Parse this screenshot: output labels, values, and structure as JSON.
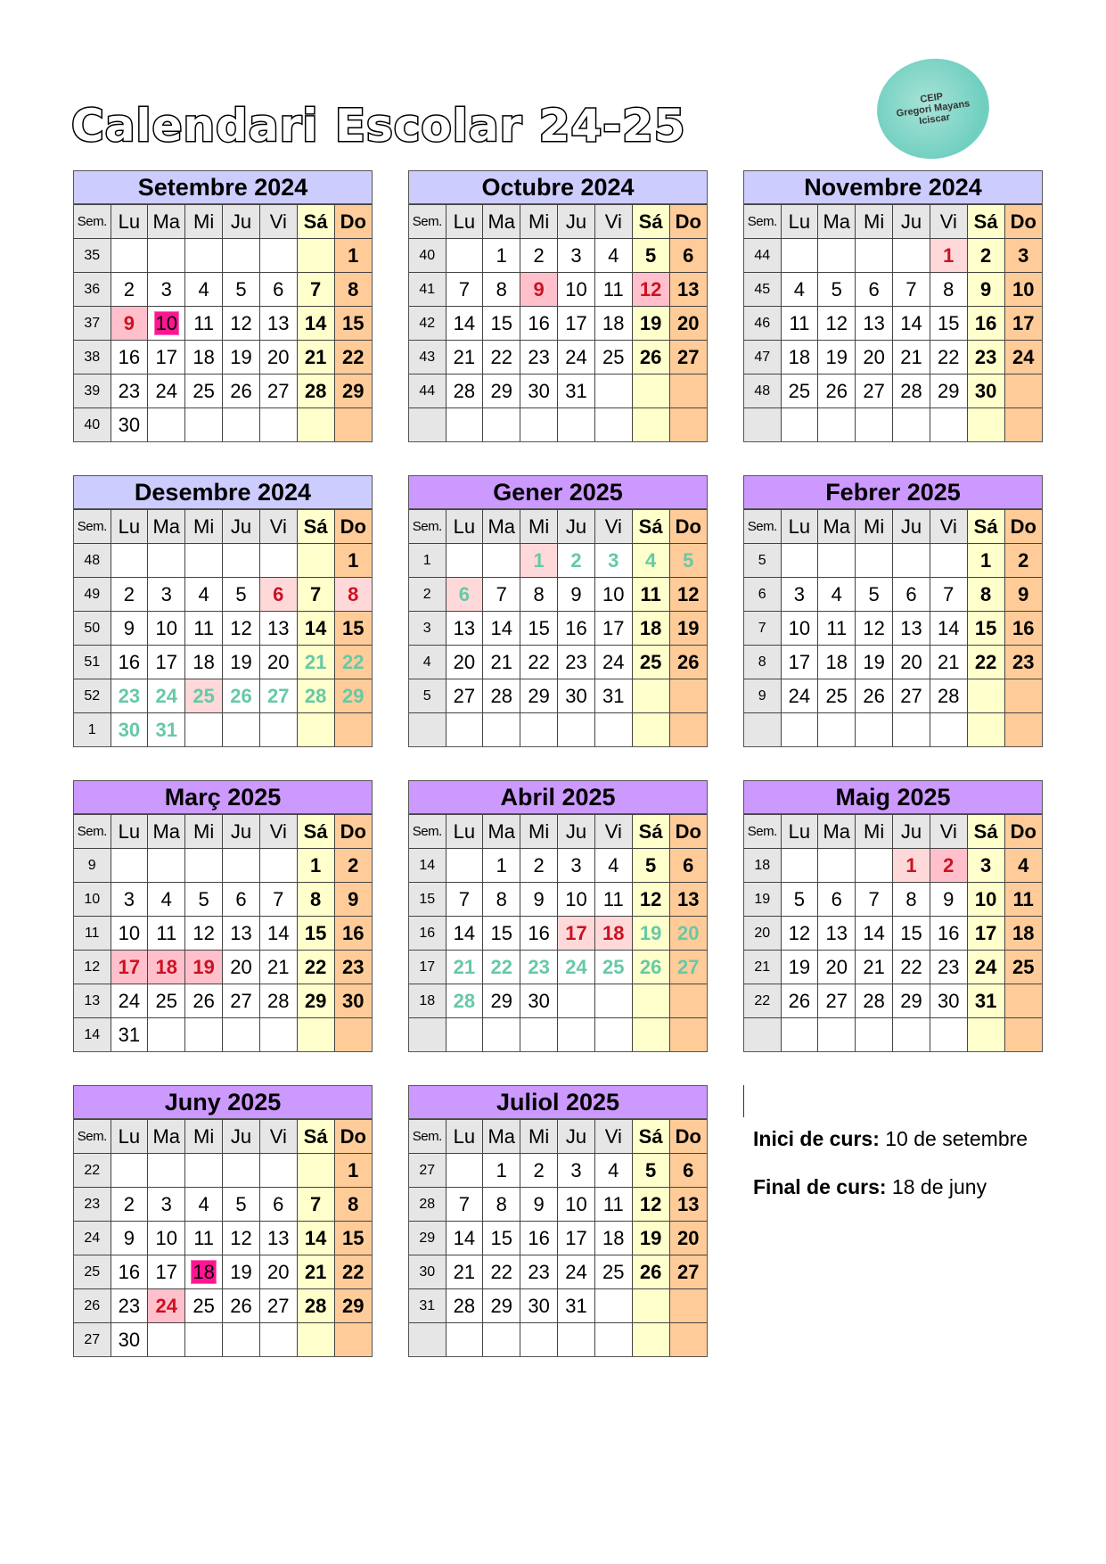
{
  "title": "Calendari Escolar 24-25",
  "logo": {
    "lines": [
      "CEIP",
      "Gregori Mayans",
      "Iciscar"
    ]
  },
  "colors": {
    "autumn_header": "#ccccff",
    "spring_header": "#cc99ff",
    "saturday": "#ffffcc",
    "sunday": "#ffcc99",
    "holiday": "#ffc0cb",
    "holiday_light": "#ffd9d9",
    "course_boundary": "#ff1493",
    "holiday_text": "#cc1122",
    "vacation_text": "#66c9a6"
  },
  "weekday_headers": [
    "Sem.",
    "Lu",
    "Ma",
    "Mi",
    "Ju",
    "Vi",
    "Sá",
    "Do"
  ],
  "months": [
    {
      "name": "Setembre 2024",
      "header": "autumn",
      "weeks": [
        [
          "35",
          "",
          "",
          "",
          "",
          "",
          "",
          "1"
        ],
        [
          "36",
          "2",
          "3",
          "4",
          "5",
          "6",
          "7",
          "8"
        ],
        [
          "37",
          "9",
          "10",
          "11",
          "12",
          "13",
          "14",
          "15"
        ],
        [
          "38",
          "16",
          "17",
          "18",
          "19",
          "20",
          "21",
          "22"
        ],
        [
          "39",
          "23",
          "24",
          "25",
          "26",
          "27",
          "28",
          "29"
        ],
        [
          "40",
          "30",
          "",
          "",
          "",
          "",
          "",
          ""
        ]
      ],
      "marks": {
        "9": "h1",
        "10": "start"
      }
    },
    {
      "name": "Octubre 2024",
      "header": "autumn",
      "weeks": [
        [
          "40",
          "",
          "1",
          "2",
          "3",
          "4",
          "5",
          "6"
        ],
        [
          "41",
          "7",
          "8",
          "9",
          "10",
          "11",
          "12",
          "13"
        ],
        [
          "42",
          "14",
          "15",
          "16",
          "17",
          "18",
          "19",
          "20"
        ],
        [
          "43",
          "21",
          "22",
          "23",
          "24",
          "25",
          "26",
          "27"
        ],
        [
          "44",
          "28",
          "29",
          "30",
          "31",
          "",
          "",
          ""
        ],
        [
          "",
          "",
          "",
          "",
          "",
          "",
          "",
          ""
        ]
      ],
      "marks": {
        "9": "h1",
        "12": "h1"
      }
    },
    {
      "name": "Novembre 2024",
      "header": "autumn",
      "weeks": [
        [
          "44",
          "",
          "",
          "",
          "",
          "1",
          "2",
          "3"
        ],
        [
          "45",
          "4",
          "5",
          "6",
          "7",
          "8",
          "9",
          "10"
        ],
        [
          "46",
          "11",
          "12",
          "13",
          "14",
          "15",
          "16",
          "17"
        ],
        [
          "47",
          "18",
          "19",
          "20",
          "21",
          "22",
          "23",
          "24"
        ],
        [
          "48",
          "25",
          "26",
          "27",
          "28",
          "29",
          "30",
          ""
        ],
        [
          "",
          "",
          "",
          "",
          "",
          "",
          "",
          ""
        ]
      ],
      "marks": {
        "1": "h2"
      }
    },
    {
      "name": "Desembre 2024",
      "header": "autumn",
      "weeks": [
        [
          "48",
          "",
          "",
          "",
          "",
          "",
          "",
          "1"
        ],
        [
          "49",
          "2",
          "3",
          "4",
          "5",
          "6",
          "7",
          "8"
        ],
        [
          "50",
          "9",
          "10",
          "11",
          "12",
          "13",
          "14",
          "15"
        ],
        [
          "51",
          "16",
          "17",
          "18",
          "19",
          "20",
          "21",
          "22"
        ],
        [
          "52",
          "23",
          "24",
          "25",
          "26",
          "27",
          "28",
          "29"
        ],
        [
          "1",
          "30",
          "31",
          "",
          "",
          "",
          "",
          ""
        ]
      ],
      "marks": {
        "6": "h2",
        "8": "h2",
        "21": "vac",
        "22": "vac",
        "23": "vac",
        "24": "vac",
        "25": "vacpink",
        "26": "vac",
        "27": "vac",
        "28": "vac",
        "29": "vac",
        "30": "vac",
        "31": "vac"
      }
    },
    {
      "name": "Gener 2025",
      "header": "spring",
      "weeks": [
        [
          "1",
          "",
          "",
          "1",
          "2",
          "3",
          "4",
          "5"
        ],
        [
          "2",
          "6",
          "7",
          "8",
          "9",
          "10",
          "11",
          "12"
        ],
        [
          "3",
          "13",
          "14",
          "15",
          "16",
          "17",
          "18",
          "19"
        ],
        [
          "4",
          "20",
          "21",
          "22",
          "23",
          "24",
          "25",
          "26"
        ],
        [
          "5",
          "27",
          "28",
          "29",
          "30",
          "31",
          "",
          ""
        ],
        [
          "",
          "",
          "",
          "",
          "",
          "",
          "",
          ""
        ]
      ],
      "marks": {
        "1": "vacpink",
        "2": "vac",
        "3": "vac",
        "4": "vac",
        "5": "vac",
        "6": "vacpink"
      }
    },
    {
      "name": "Febrer 2025",
      "header": "spring",
      "weeks": [
        [
          "5",
          "",
          "",
          "",
          "",
          "",
          "1",
          "2"
        ],
        [
          "6",
          "3",
          "4",
          "5",
          "6",
          "7",
          "8",
          "9"
        ],
        [
          "7",
          "10",
          "11",
          "12",
          "13",
          "14",
          "15",
          "16"
        ],
        [
          "8",
          "17",
          "18",
          "19",
          "20",
          "21",
          "22",
          "23"
        ],
        [
          "9",
          "24",
          "25",
          "26",
          "27",
          "28",
          "",
          ""
        ],
        [
          "",
          "",
          "",
          "",
          "",
          "",
          "",
          ""
        ]
      ],
      "marks": {}
    },
    {
      "name": "Març 2025",
      "header": "spring",
      "weeks": [
        [
          "9",
          "",
          "",
          "",
          "",
          "",
          "1",
          "2"
        ],
        [
          "10",
          "3",
          "4",
          "5",
          "6",
          "7",
          "8",
          "9"
        ],
        [
          "11",
          "10",
          "11",
          "12",
          "13",
          "14",
          "15",
          "16"
        ],
        [
          "12",
          "17",
          "18",
          "19",
          "20",
          "21",
          "22",
          "23"
        ],
        [
          "13",
          "24",
          "25",
          "26",
          "27",
          "28",
          "29",
          "30"
        ],
        [
          "14",
          "31",
          "",
          "",
          "",
          "",
          "",
          ""
        ]
      ],
      "marks": {
        "17": "h1",
        "18": "h1",
        "19": "h1"
      }
    },
    {
      "name": "Abril 2025",
      "header": "spring",
      "weeks": [
        [
          "14",
          "",
          "1",
          "2",
          "3",
          "4",
          "5",
          "6"
        ],
        [
          "15",
          "7",
          "8",
          "9",
          "10",
          "11",
          "12",
          "13"
        ],
        [
          "16",
          "14",
          "15",
          "16",
          "17",
          "18",
          "19",
          "20"
        ],
        [
          "17",
          "21",
          "22",
          "23",
          "24",
          "25",
          "26",
          "27"
        ],
        [
          "18",
          "28",
          "29",
          "30",
          "",
          "",
          "",
          ""
        ],
        [
          "",
          "",
          "",
          "",
          "",
          "",
          "",
          ""
        ]
      ],
      "marks": {
        "17": "h2",
        "18": "h2",
        "19": "vac",
        "20": "vac",
        "21": "vac",
        "22": "vac",
        "23": "vac",
        "24": "vac",
        "25": "vac",
        "26": "vac",
        "27": "vac",
        "28": "vac"
      }
    },
    {
      "name": "Maig 2025",
      "header": "spring",
      "weeks": [
        [
          "18",
          "",
          "",
          "",
          "1",
          "2",
          "3",
          "4"
        ],
        [
          "19",
          "5",
          "6",
          "7",
          "8",
          "9",
          "10",
          "11"
        ],
        [
          "20",
          "12",
          "13",
          "14",
          "15",
          "16",
          "17",
          "18"
        ],
        [
          "21",
          "19",
          "20",
          "21",
          "22",
          "23",
          "24",
          "25"
        ],
        [
          "22",
          "26",
          "27",
          "28",
          "29",
          "30",
          "31",
          ""
        ],
        [
          "",
          "",
          "",
          "",
          "",
          "",
          "",
          ""
        ]
      ],
      "marks": {
        "1": "h2",
        "2": "h1"
      }
    },
    {
      "name": "Juny 2025",
      "header": "spring",
      "weeks": [
        [
          "22",
          "",
          "",
          "",
          "",
          "",
          "",
          "1"
        ],
        [
          "23",
          "2",
          "3",
          "4",
          "5",
          "6",
          "7",
          "8"
        ],
        [
          "24",
          "9",
          "10",
          "11",
          "12",
          "13",
          "14",
          "15"
        ],
        [
          "25",
          "16",
          "17",
          "18",
          "19",
          "20",
          "21",
          "22"
        ],
        [
          "26",
          "23",
          "24",
          "25",
          "26",
          "27",
          "28",
          "29"
        ],
        [
          "27",
          "30",
          "",
          "",
          "",
          "",
          "",
          ""
        ]
      ],
      "marks": {
        "18": "start",
        "24": "h1"
      }
    },
    {
      "name": "Juliol 2025",
      "header": "spring",
      "weeks": [
        [
          "27",
          "",
          "1",
          "2",
          "3",
          "4",
          "5",
          "6"
        ],
        [
          "28",
          "7",
          "8",
          "9",
          "10",
          "11",
          "12",
          "13"
        ],
        [
          "29",
          "14",
          "15",
          "16",
          "17",
          "18",
          "19",
          "20"
        ],
        [
          "30",
          "21",
          "22",
          "23",
          "24",
          "25",
          "26",
          "27"
        ],
        [
          "31",
          "28",
          "29",
          "30",
          "31",
          "",
          "",
          ""
        ],
        [
          "",
          "",
          "",
          "",
          "",
          "",
          "",
          ""
        ]
      ],
      "marks": {}
    }
  ],
  "notes": {
    "start_label": "Inici de curs:",
    "start_value": " 10 de setembre",
    "end_label": "Final de curs:",
    "end_value": " 18 de juny"
  }
}
